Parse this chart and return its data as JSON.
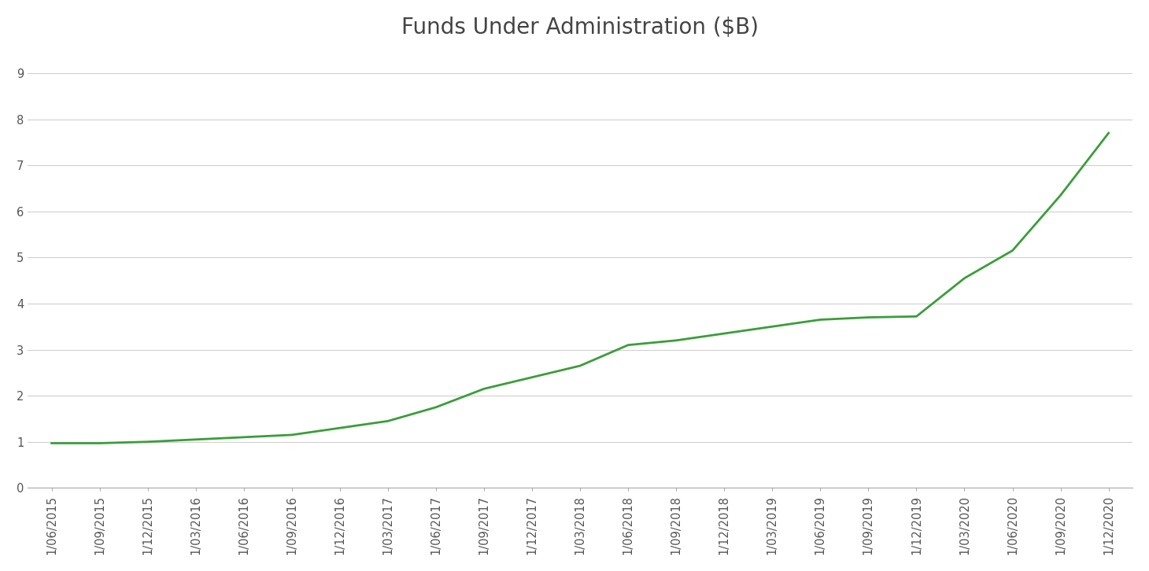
{
  "title": "Funds Under Administration ($B)",
  "title_fontsize": 20,
  "line_color": "#3a9e3a",
  "line_width": 2.0,
  "background_color": "#ffffff",
  "plot_bg_color": "#ffffff",
  "grid_color": "#d0d0d0",
  "ylim": [
    0,
    9.5
  ],
  "yticks": [
    0,
    1,
    2,
    3,
    4,
    5,
    6,
    7,
    8,
    9
  ],
  "labels": [
    "1/06/2015",
    "1/09/2015",
    "1/12/2015",
    "1/03/2016",
    "1/06/2016",
    "1/09/2016",
    "1/12/2016",
    "1/03/2017",
    "1/06/2017",
    "1/09/2017",
    "1/12/2017",
    "1/03/2018",
    "1/06/2018",
    "1/09/2018",
    "1/12/2018",
    "1/03/2019",
    "1/06/2019",
    "1/09/2019",
    "1/12/2019",
    "1/03/2020",
    "1/06/2020",
    "1/09/2020",
    "1/12/2020"
  ],
  "values": [
    0.97,
    0.97,
    1.0,
    1.05,
    1.1,
    1.15,
    1.3,
    1.45,
    1.75,
    2.15,
    2.4,
    2.65,
    3.1,
    3.2,
    3.35,
    3.5,
    3.65,
    3.7,
    3.72,
    4.55,
    5.15,
    6.35,
    7.7
  ],
  "tick_label_fontsize": 10.5,
  "tick_label_color": "#555555",
  "title_color": "#444444"
}
